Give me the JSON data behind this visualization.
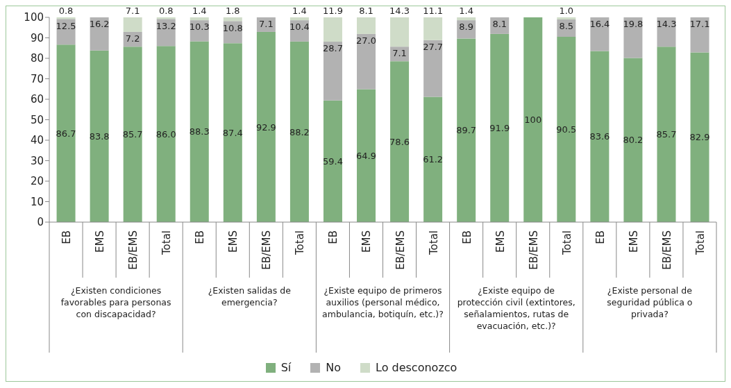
{
  "chart_data": {
    "type": "bar",
    "stacked": true,
    "categories": [
      "EB",
      "EMS",
      "EB/EMS",
      "Total",
      "EB",
      "EMS",
      "EB/EMS",
      "Total",
      "EB",
      "EMS",
      "EB/EMS",
      "Total",
      "EB",
      "EMS",
      "EB/EMS",
      "Total",
      "EB",
      "EMS",
      "EB/EMS",
      "Total"
    ],
    "series": [
      {
        "name": "Sí",
        "color": "#80b07e",
        "values": [
          86.7,
          83.8,
          85.7,
          86.0,
          88.3,
          87.4,
          92.9,
          88.2,
          59.4,
          64.9,
          78.6,
          61.2,
          89.7,
          91.9,
          100,
          90.5,
          83.6,
          80.2,
          85.7,
          82.9
        ],
        "value_labels": [
          "86.7",
          "83.8",
          "85.7",
          "86.0",
          "88.3",
          "87.4",
          "92.9",
          "88.2",
          "59.4",
          "64.9",
          "78.6",
          "61.2",
          "89.7",
          "91.9",
          "100",
          "90.5",
          "83.6",
          "80.2",
          "85.7",
          "82.9"
        ]
      },
      {
        "name": "No",
        "color": "#b2b2b2",
        "values": [
          12.5,
          16.2,
          7.2,
          13.2,
          10.3,
          10.8,
          7.1,
          10.4,
          28.7,
          27.0,
          7.1,
          27.7,
          8.9,
          8.1,
          null,
          8.5,
          16.4,
          19.8,
          14.3,
          17.1
        ],
        "value_labels": [
          "12.5",
          "16.2",
          "7.2",
          "13.2",
          "10.3",
          "10.8",
          "7.1",
          "10.4",
          "28.7",
          "27.0",
          "7.1",
          "27.7",
          "8.9",
          "8.1",
          null,
          "8.5",
          "16.4",
          "19.8",
          "14.3",
          "17.1"
        ]
      },
      {
        "name": "Lo desconozco",
        "color": "#cfdcc8",
        "values": [
          0.8,
          null,
          7.1,
          0.8,
          1.4,
          1.8,
          null,
          1.4,
          11.9,
          8.1,
          14.3,
          11.1,
          1.4,
          null,
          null,
          1.0,
          null,
          null,
          null,
          null
        ],
        "value_labels": [
          "0.8",
          null,
          "7.1",
          "0.8",
          "1.4",
          "1.8",
          null,
          "1.4",
          "11.9",
          "8.1",
          "14.3",
          "11.1",
          "1.4",
          null,
          null,
          "1.0",
          null,
          null,
          null,
          null
        ]
      }
    ],
    "ylim": [
      0,
      100
    ],
    "yticks": [
      0,
      10,
      20,
      30,
      40,
      50,
      60,
      70,
      80,
      90,
      100
    ],
    "grid": false,
    "legend": "bottom",
    "annotations": [
      "¿Existen condiciones favorables para personas con discapacidad?",
      "¿Existen salidas de emergencia?",
      "¿Existe equipo de primeros auxilios (personal médico, ambulancia, botiquín, etc.)?",
      "¿Existe equipo de protección civil (extintores, señalamientos, rutas de evacuación, etc.)?",
      "¿Existe personal de seguridad pública o privada?"
    ]
  }
}
